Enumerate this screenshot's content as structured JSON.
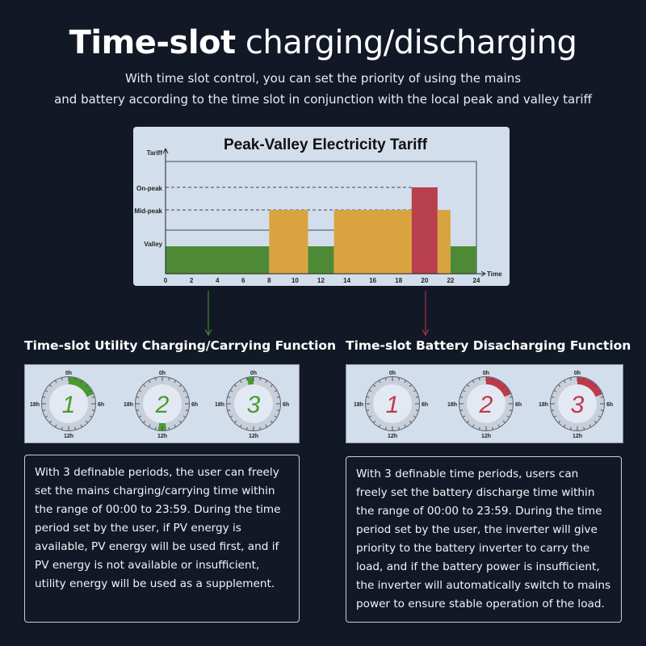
{
  "header": {
    "title_bold": "Time-slot",
    "title_rest": "charging/discharging",
    "subtitle_line1": "With time slot control, you can set the priority of using the mains",
    "subtitle_line2": "and battery according to the time slot in conjunction with the local peak and valley tariff"
  },
  "chart_data": {
    "type": "bar",
    "title": "Peak-Valley Electricity Tariff",
    "ylabel": "Tariff",
    "xlabel": "Time",
    "x_ticks": [
      0,
      2,
      4,
      6,
      8,
      10,
      12,
      14,
      16,
      18,
      20,
      22,
      24
    ],
    "xlim": [
      0,
      24
    ],
    "levels": [
      "Valley",
      "Mid-peak",
      "On-peak"
    ],
    "segments": [
      {
        "start": 0,
        "end": 8,
        "level": "Valley"
      },
      {
        "start": 8,
        "end": 11,
        "level": "Mid-peak"
      },
      {
        "start": 11,
        "end": 13,
        "level": "Valley"
      },
      {
        "start": 13,
        "end": 19,
        "level": "Mid-peak"
      },
      {
        "start": 19,
        "end": 21,
        "level": "On-peak"
      },
      {
        "start": 21,
        "end": 22,
        "level": "Mid-peak"
      },
      {
        "start": 22,
        "end": 24,
        "level": "Valley"
      }
    ],
    "colors": {
      "Valley": "#4e8a36",
      "Mid-peak": "#d9a440",
      "On-peak": "#b83f4c"
    }
  },
  "left": {
    "heading": "Time-slot Utility Charging/Carrying Function",
    "accent": "#4a9a30",
    "clocks": [
      {
        "number": "1",
        "arc": [
          0,
          4.6
        ]
      },
      {
        "number": "2",
        "arc": [
          11.4,
          12.6
        ]
      },
      {
        "number": "3",
        "arc": [
          23,
          24
        ]
      }
    ],
    "text": "With 3 definable periods, the user can freely set the mains charging/carrying time within the range of 00:00 to 23:59. During the time period set by the user, if PV energy is available, PV energy will be used first, and if PV energy is not available or insufficient, utility energy will be used as a supplement."
  },
  "right": {
    "heading": "Time-slot Battery Disacharging Function",
    "accent": "#c0394a",
    "clocks": [
      {
        "number": "1",
        "arc": null
      },
      {
        "number": "2",
        "arc": [
          0,
          4.6
        ]
      },
      {
        "number": "3",
        "arc": [
          0,
          4.6
        ]
      }
    ],
    "text": "With 3 definable time periods, users can freely set the battery discharge time within the range of 00:00 to 23:59. During the time period set by the user, the inverter will give priority to the battery inverter to carry the load, and if the battery power is insufficient, the inverter will automatically switch to mains power to ensure stable operation of the load."
  },
  "clock_labels": {
    "top": "0h",
    "right": "6h",
    "bottom": "12h",
    "left": "18h"
  }
}
